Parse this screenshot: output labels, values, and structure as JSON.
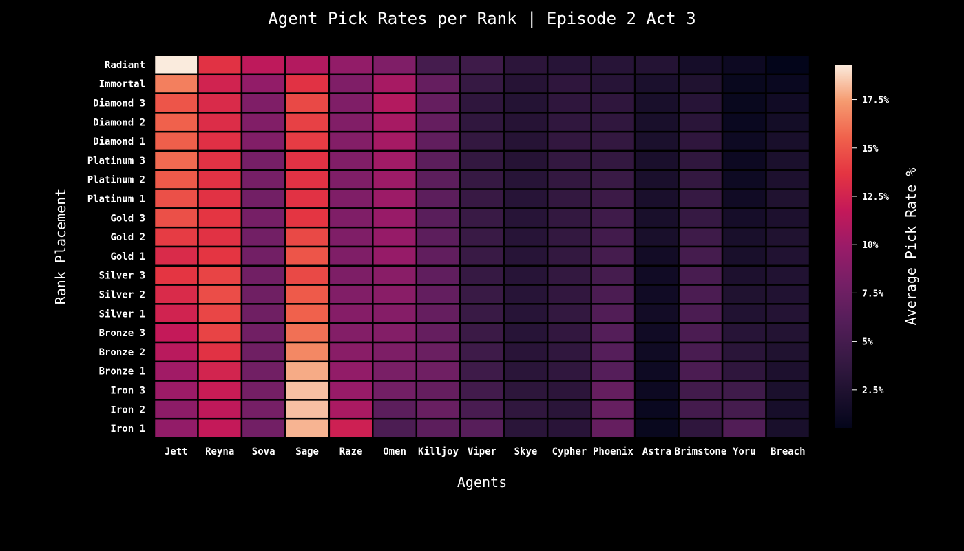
{
  "chart_data": {
    "type": "heatmap",
    "title": "Agent Pick Rates per Rank | Episode 2 Act 3",
    "xlabel": "Agents",
    "ylabel": "Rank Placement",
    "colorbar_label": "Average Pick Rate %",
    "colorbar_ticks": [
      "2.5%",
      "5%",
      "7.5%",
      "10%",
      "12.5%",
      "15%",
      "17.5%"
    ],
    "colorbar_tick_values": [
      2.5,
      5,
      7.5,
      10,
      12.5,
      15,
      17.5
    ],
    "color_range": [
      0.5,
      19.3
    ],
    "colormap": "rocket",
    "x_categories": [
      "Jett",
      "Reyna",
      "Sova",
      "Sage",
      "Raze",
      "Omen",
      "Killjoy",
      "Viper",
      "Skye",
      "Cypher",
      "Phoenix",
      "Astra",
      "Brimstone",
      "Yoru",
      "Breach"
    ],
    "y_categories": [
      "Radiant",
      "Immortal",
      "Diamond 3",
      "Diamond 2",
      "Diamond 1",
      "Platinum 3",
      "Platinum 2",
      "Platinum 1",
      "Gold 3",
      "Gold 2",
      "Gold 1",
      "Silver 3",
      "Silver 2",
      "Silver 1",
      "Bronze 3",
      "Bronze 2",
      "Bronze 1",
      "Iron 3",
      "Iron 2",
      "Iron 1"
    ],
    "values": [
      [
        19.3,
        13.5,
        11.5,
        11.0,
        9.5,
        8.5,
        5.0,
        4.5,
        3.3,
        3.0,
        3.0,
        2.8,
        1.8,
        1.2,
        0.5
      ],
      [
        16.5,
        12.5,
        9.5,
        13.5,
        8.5,
        10.5,
        7.0,
        4.0,
        2.9,
        3.5,
        3.0,
        2.2,
        2.5,
        0.9,
        1.0
      ],
      [
        15.0,
        13.0,
        8.5,
        14.5,
        8.5,
        11.0,
        7.0,
        3.5,
        2.8,
        3.5,
        3.5,
        2.0,
        3.0,
        0.9,
        1.5
      ],
      [
        15.5,
        13.2,
        8.6,
        14.2,
        8.6,
        10.5,
        7.0,
        3.6,
        2.9,
        3.6,
        3.6,
        2.0,
        3.2,
        1.0,
        1.7
      ],
      [
        15.4,
        13.4,
        8.6,
        14.0,
        8.7,
        10.4,
        6.8,
        3.8,
        2.9,
        3.7,
        3.8,
        2.2,
        3.5,
        1.3,
        2.0
      ],
      [
        15.8,
        13.5,
        8.0,
        13.5,
        8.6,
        10.2,
        6.5,
        3.8,
        2.9,
        3.8,
        3.8,
        2.1,
        3.6,
        1.2,
        2.2
      ],
      [
        15.2,
        13.5,
        8.0,
        13.5,
        8.5,
        10.0,
        6.5,
        4.0,
        3.0,
        3.8,
        4.2,
        2.1,
        3.8,
        1.3,
        2.3
      ],
      [
        14.8,
        13.5,
        7.8,
        13.5,
        8.5,
        10.0,
        6.5,
        4.1,
        3.0,
        3.8,
        4.4,
        2.1,
        4.0,
        1.5,
        2.5
      ],
      [
        14.8,
        13.7,
        8.0,
        13.7,
        8.5,
        9.8,
        6.3,
        4.2,
        3.0,
        3.8,
        4.6,
        2.0,
        4.0,
        1.8,
        2.3
      ],
      [
        14.0,
        13.5,
        7.8,
        14.5,
        8.5,
        9.7,
        6.5,
        4.2,
        3.0,
        3.8,
        4.8,
        2.0,
        4.5,
        2.0,
        2.5
      ],
      [
        13.0,
        13.7,
        7.8,
        15.0,
        8.5,
        9.7,
        6.8,
        4.2,
        3.0,
        3.8,
        5.0,
        1.6,
        5.0,
        2.0,
        2.6
      ],
      [
        13.7,
        14.3,
        7.7,
        14.5,
        8.4,
        9.0,
        6.7,
        4.0,
        3.0,
        3.8,
        5.0,
        1.5,
        5.2,
        2.3,
        2.6
      ],
      [
        13.0,
        14.7,
        7.6,
        15.2,
        8.6,
        9.0,
        6.9,
        4.2,
        3.0,
        3.7,
        5.4,
        1.5,
        5.4,
        2.5,
        2.6
      ],
      [
        12.5,
        14.4,
        7.6,
        15.5,
        8.8,
        8.8,
        7.0,
        4.2,
        3.0,
        3.8,
        5.8,
        1.6,
        5.4,
        2.6,
        2.8
      ],
      [
        11.8,
        14.3,
        7.7,
        16.0,
        8.7,
        8.7,
        7.0,
        4.3,
        3.0,
        3.7,
        6.0,
        1.5,
        5.4,
        3.0,
        2.7
      ],
      [
        11.3,
        13.5,
        7.6,
        16.8,
        9.0,
        8.4,
        7.3,
        4.5,
        3.1,
        3.6,
        6.1,
        1.4,
        5.3,
        3.2,
        2.5
      ],
      [
        10.2,
        12.6,
        7.7,
        17.8,
        9.5,
        8.2,
        7.6,
        4.5,
        3.2,
        3.6,
        6.1,
        1.3,
        5.4,
        3.5,
        2.3
      ],
      [
        10.0,
        12.0,
        7.9,
        18.3,
        9.8,
        7.8,
        7.0,
        4.8,
        3.4,
        3.3,
        7.0,
        1.2,
        4.8,
        4.6,
        2.2
      ],
      [
        9.2,
        11.6,
        8.0,
        18.3,
        10.6,
        6.5,
        7.2,
        5.3,
        3.6,
        3.2,
        7.1,
        1.0,
        4.9,
        5.0,
        1.9
      ],
      [
        9.5,
        11.8,
        7.8,
        18.0,
        12.3,
        5.5,
        6.5,
        6.2,
        3.2,
        3.1,
        7.0,
        0.9,
        3.5,
        5.8,
        2.0
      ]
    ]
  }
}
